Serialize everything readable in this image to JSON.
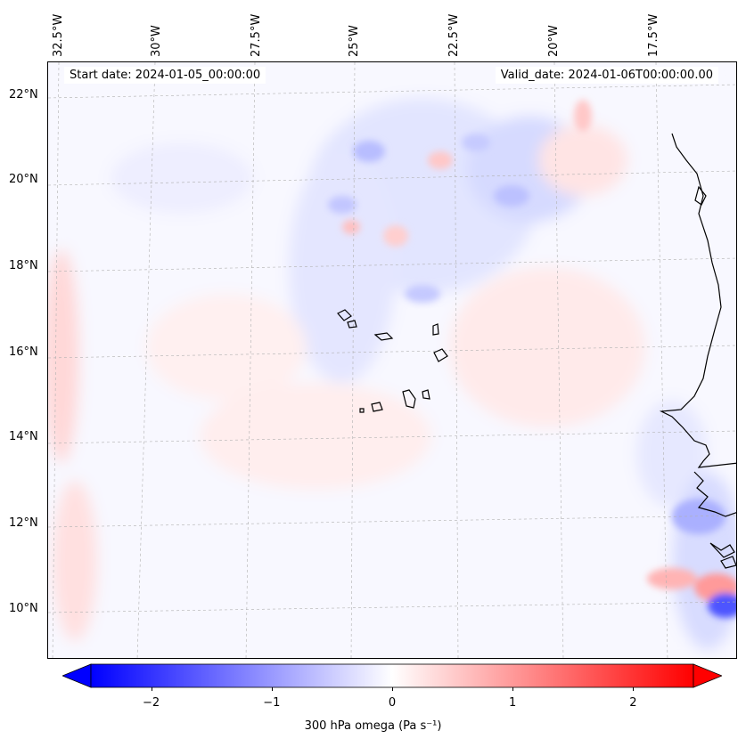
{
  "map": {
    "start_label": "Start date: 2024-01-05_00:00:00",
    "valid_label": "Valid_date: 2024-01-06T00:00:00.00",
    "lon_labels": [
      "32.5°W",
      "30°W",
      "27.5°W",
      "25°W",
      "22.5°W",
      "20°W",
      "17.5°W"
    ],
    "lat_labels": [
      "22°N",
      "20°N",
      "18°N",
      "16°N",
      "14°N",
      "12°N",
      "10°N"
    ],
    "colors": {
      "negative": "#0000ff",
      "zero": "#ffffff",
      "positive": "#ff0000",
      "coast": "#000000"
    }
  },
  "colorbar": {
    "ticks": [
      "−2",
      "−1",
      "0",
      "1",
      "2"
    ],
    "tick_values": [
      -2,
      -1,
      0,
      1,
      2
    ],
    "range": [
      -2.5,
      2.5
    ],
    "label": "300 hPa omega (Pa s⁻¹)"
  }
}
